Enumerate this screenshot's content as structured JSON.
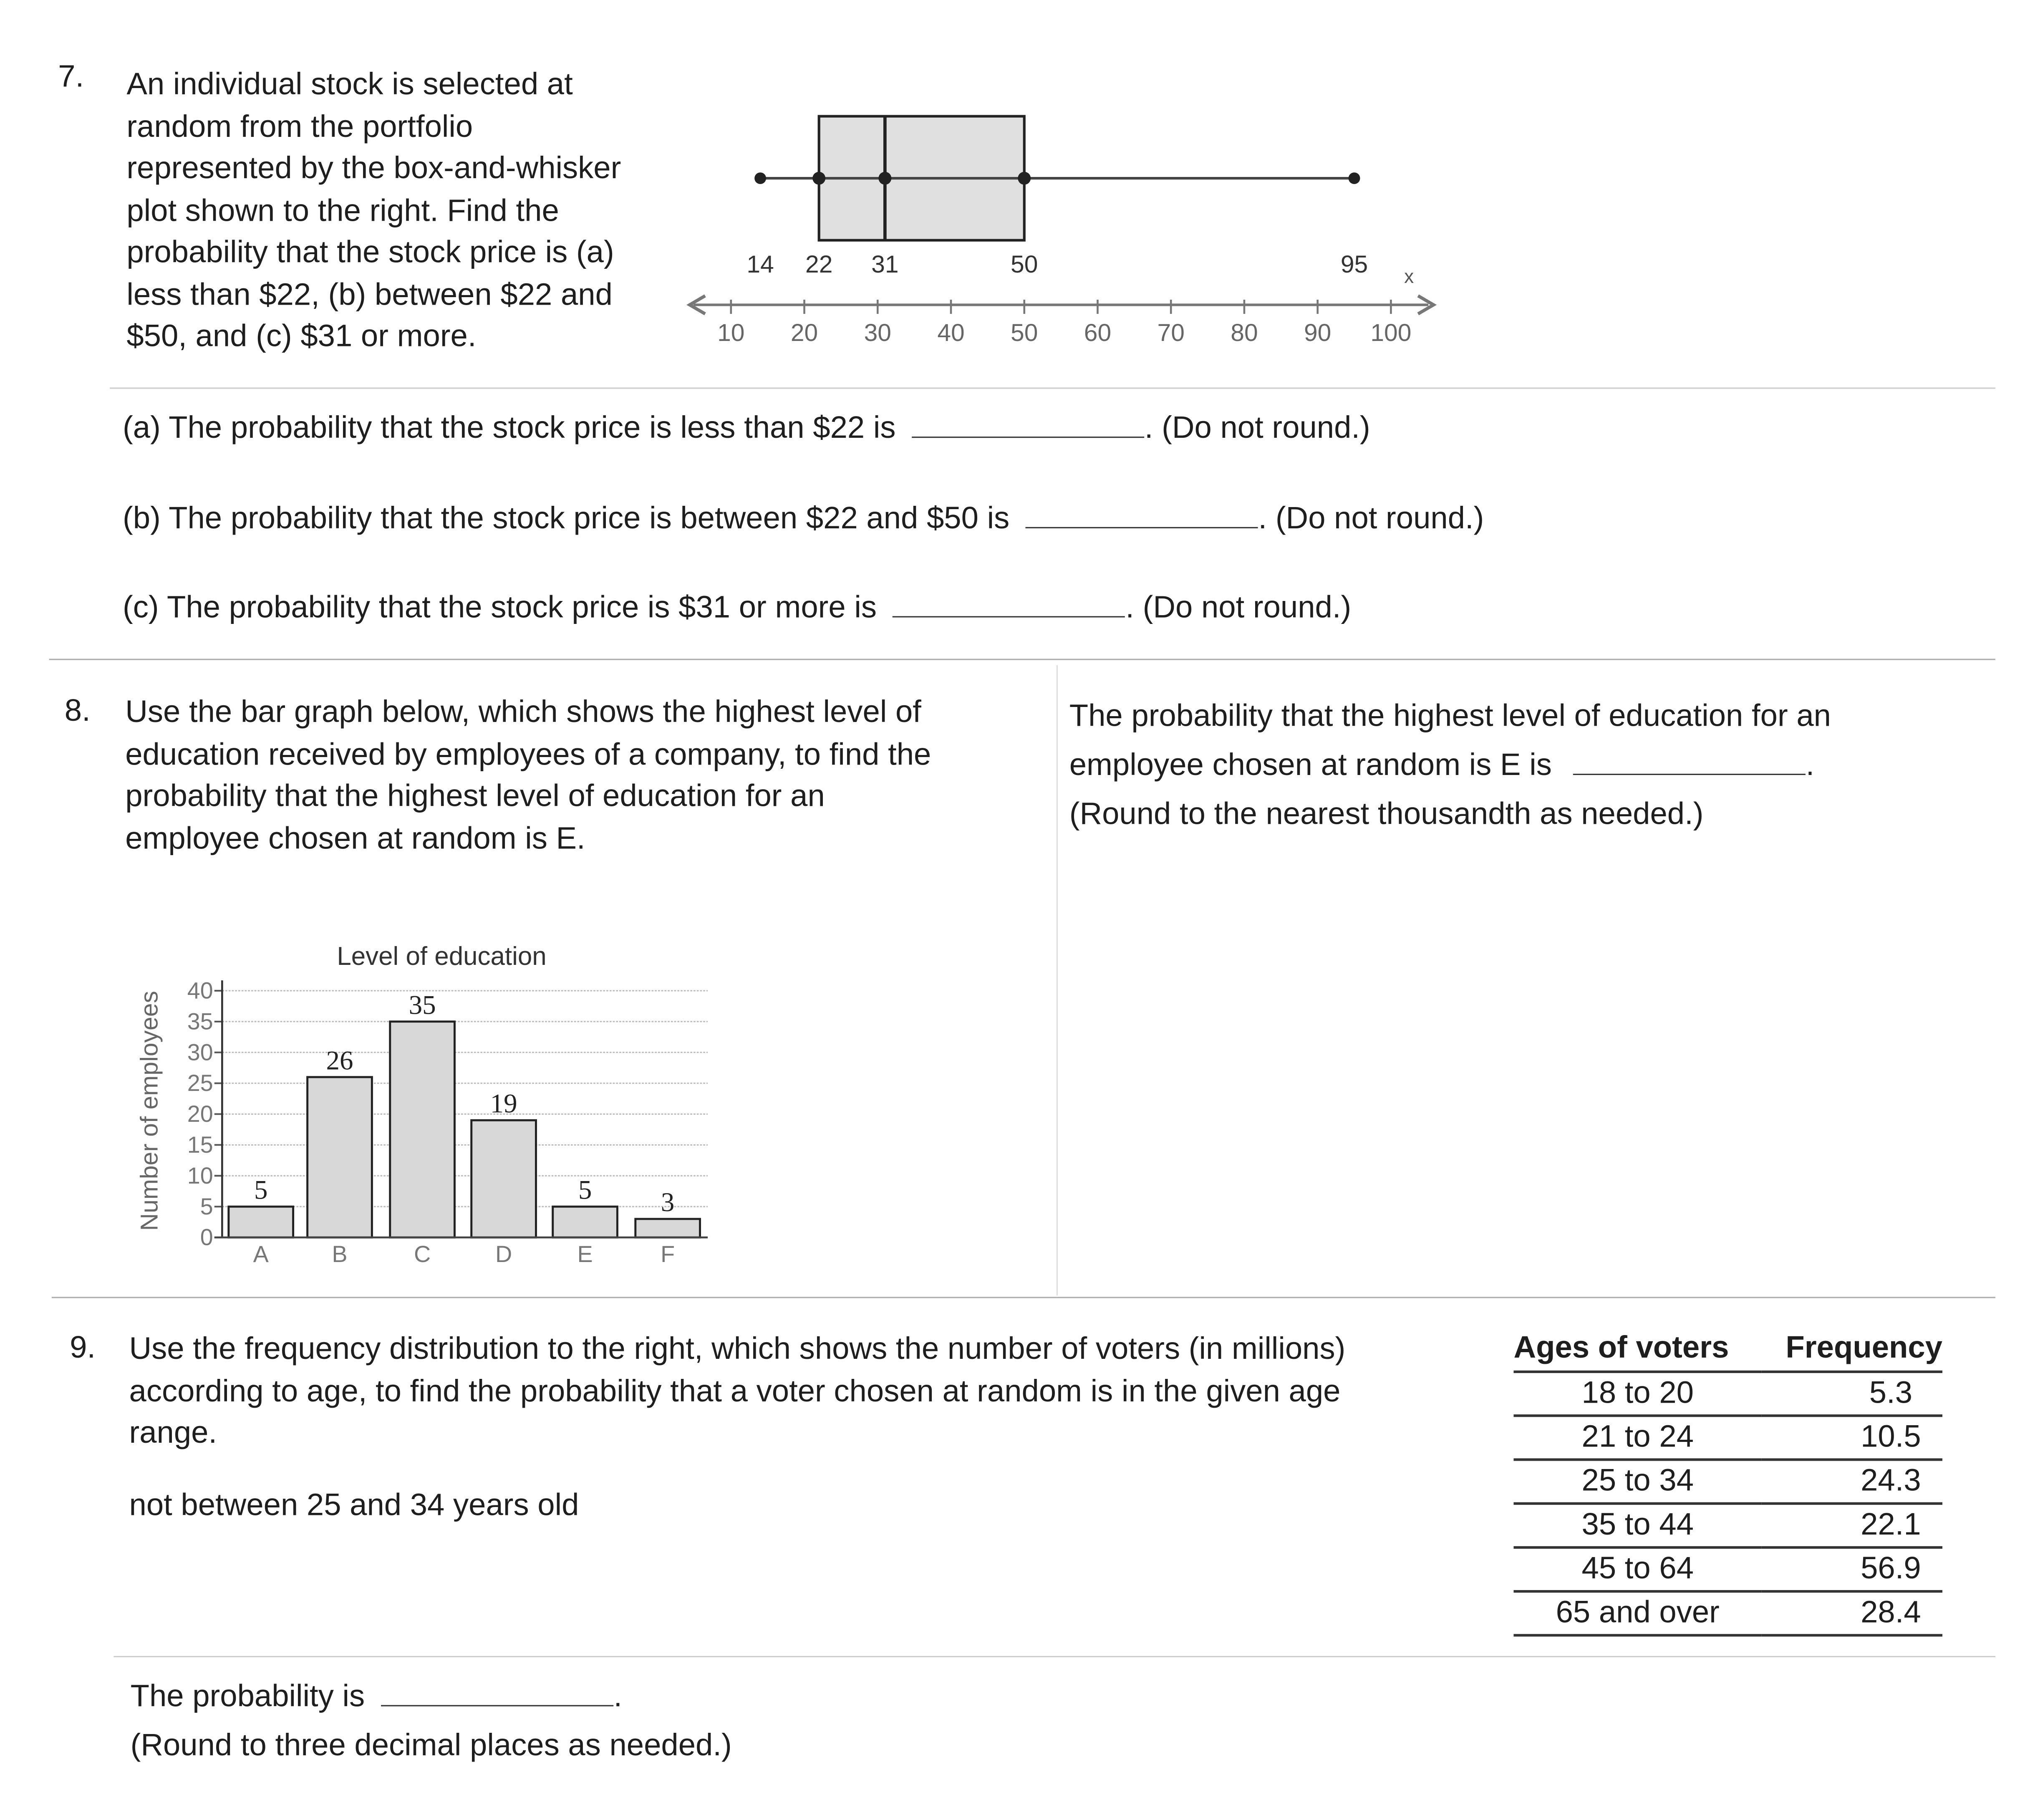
{
  "q7": {
    "number": "7.",
    "prompt_lines": [
      "An individual stock is selected at",
      "random from the portfolio",
      "represented by the box-and-whisker",
      "plot shown to the right. Find the",
      "probability that the stock price is (a)",
      "less than $22, (b) between $22 and",
      "$50, and (c) $31 or more."
    ],
    "boxplot": {
      "min": 14,
      "q1": 22,
      "median": 31,
      "q3": 50,
      "max": 95,
      "value_labels": [
        "14",
        "22",
        "31",
        "50",
        "95"
      ],
      "axis_label": "x",
      "axis_range": [
        10,
        100
      ],
      "axis_ticks": [
        "10",
        "20",
        "30",
        "40",
        "50",
        "60",
        "70",
        "80",
        "90",
        "100"
      ]
    },
    "answers": [
      {
        "before": "(a) The probability that the stock price is less than $22 is",
        "after": ". (Do not round.)"
      },
      {
        "before": "(b) The probability that the stock price is between $22 and $50 is",
        "after": ". (Do not round.)"
      },
      {
        "before": "(c) The probability that the stock price is $31 or more is",
        "after": ". (Do not round.)"
      }
    ]
  },
  "q8": {
    "number": "8.",
    "prompt_lines": [
      "Use the bar graph below, which shows the highest level of",
      "education received by employees of a company, to find the",
      "probability that the highest level of education for an",
      "employee chosen at random is E."
    ],
    "answer_lines": [
      "The probability that the highest level of education for an",
      "employee chosen at random is E is"
    ],
    "answer_after": ".",
    "round_note": "(Round to the nearest thousandth as needed.)"
  },
  "chart_data": {
    "type": "bar",
    "title": "Level of education",
    "xlabel": "",
    "ylabel": "Number of employees",
    "categories": [
      "A",
      "B",
      "C",
      "D",
      "E",
      "F"
    ],
    "values": [
      5,
      26,
      35,
      19,
      5,
      3
    ],
    "data_labels": [
      "5",
      "26",
      "35",
      "19",
      "5",
      "3"
    ],
    "ylim": [
      0,
      40
    ],
    "yticks": [
      "0",
      "5",
      "10",
      "15",
      "20",
      "25",
      "30",
      "35",
      "40"
    ],
    "grid": true
  },
  "q9": {
    "number": "9.",
    "prompt_lines": [
      "Use the frequency distribution to the right, which shows the number of voters (in millions)",
      "according to age, to find the probability that a voter chosen at random is in the given age",
      "range."
    ],
    "condition": "not between 25 and 34 years old",
    "table": {
      "headers": [
        "Ages of voters",
        "Frequency"
      ],
      "rows": [
        [
          "18 to 20",
          "5.3"
        ],
        [
          "21 to 24",
          "10.5"
        ],
        [
          "25 to 34",
          "24.3"
        ],
        [
          "35 to 44",
          "22.1"
        ],
        [
          "45 to 64",
          "56.9"
        ],
        [
          "65 and over",
          "28.4"
        ]
      ]
    },
    "answer_before": "The probability is",
    "answer_after": ".",
    "round_note": "(Round to three decimal places as needed.)"
  }
}
